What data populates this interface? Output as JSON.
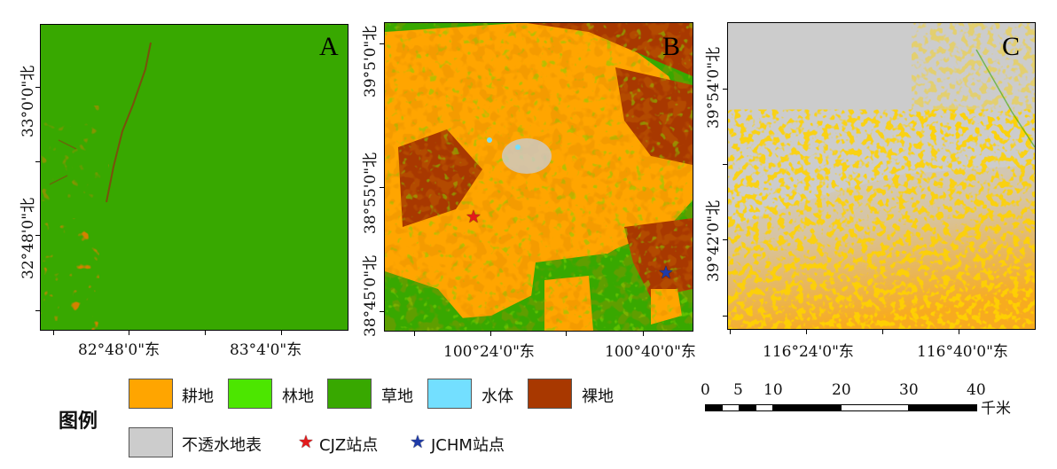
{
  "panels": [
    {
      "letter": "A",
      "lat_labels": [
        "33°0'0\"北",
        "32°48'0\"北"
      ],
      "lon_labels": [
        "82°48'0\"东",
        "83°4'0\"东"
      ]
    },
    {
      "letter": "B",
      "lat_labels": [
        "39°5'0\"北",
        "38°55'0\"北",
        "38°45'0\"北"
      ],
      "lon_labels": [
        "100°24'0\"东",
        "100°40'0\"东"
      ]
    },
    {
      "letter": "C",
      "lat_labels": [
        "39°54'0\"北",
        "39°42'0\"北"
      ],
      "lon_labels": [
        "116°24'0\"东",
        "116°40'0\"东"
      ]
    }
  ],
  "legend": {
    "title": "图例",
    "classes": [
      {
        "label": "耕地",
        "color": "#FFA500"
      },
      {
        "label": "林地",
        "color": "#4CE600"
      },
      {
        "label": "草地",
        "color": "#38A800"
      },
      {
        "label": "水体",
        "color": "#73DFFF"
      },
      {
        "label": "裸地",
        "color": "#A83800"
      },
      {
        "label": "不透水地表",
        "color": "#CCCCCC"
      }
    ],
    "sites": [
      {
        "label": "CJZ站点",
        "color": "#E31A1C",
        "icon": "star-icon"
      },
      {
        "label": "JCHM站点",
        "color": "#1F3BA8",
        "icon": "star-icon"
      }
    ]
  },
  "scale_bar": {
    "ticks": [
      "0",
      "5",
      "10",
      "20",
      "30",
      "40"
    ],
    "unit": "千米"
  }
}
